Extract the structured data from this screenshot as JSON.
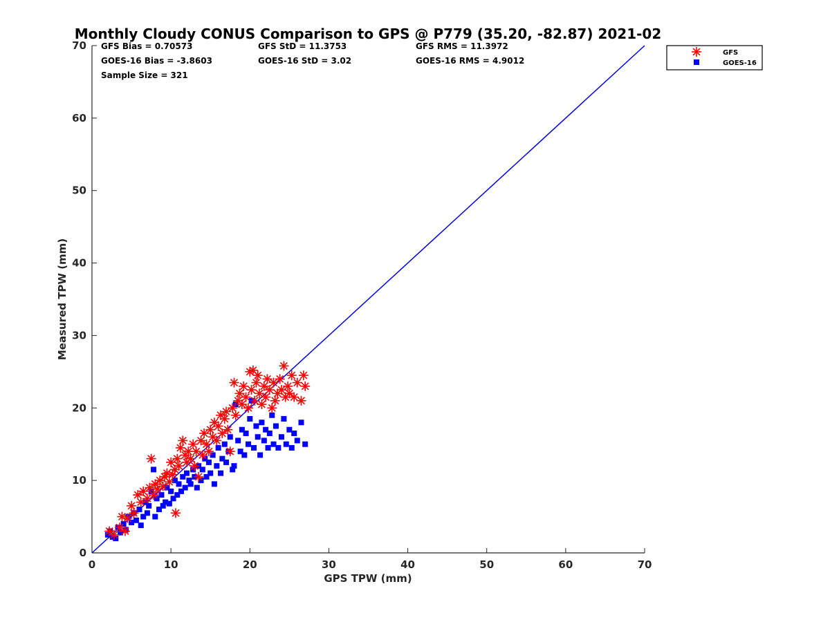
{
  "chart_data": {
    "type": "scatter",
    "title": "Monthly Cloudy CONUS Comparison to GPS @ P779 (35.20, -82.87) 2021-02",
    "xlabel": "GPS TPW (mm)",
    "ylabel": "Measured TPW (mm)",
    "xlim": [
      0,
      70
    ],
    "ylim": [
      0,
      70
    ],
    "xticks": [
      "0",
      "10",
      "20",
      "30",
      "40",
      "50",
      "60",
      "70"
    ],
    "yticks": [
      "0",
      "10",
      "20",
      "30",
      "40",
      "50",
      "60",
      "70"
    ],
    "grid": false,
    "legend_position": "top-right",
    "stats": {
      "gfs_bias": "GFS Bias = 0.70573",
      "gfs_std": "GFS StD = 11.3753",
      "gfs_rms": "GFS RMS = 11.3972",
      "goes_bias": "GOES-16 Bias = -3.8603",
      "goes_std": "GOES-16 StD = 3.02",
      "goes_rms": "GOES-16 RMS = 4.9012",
      "sample_size": "Sample Size = 321"
    },
    "reference_line": {
      "from": [
        0,
        0
      ],
      "to": [
        70,
        70
      ],
      "color": "#0000ff"
    },
    "series": [
      {
        "name": "GFS",
        "marker": "asterisk",
        "color": "#ff0000",
        "points": [
          [
            2.2,
            3.0
          ],
          [
            2.8,
            2.5
          ],
          [
            3.5,
            3.5
          ],
          [
            3.8,
            5.0
          ],
          [
            4.2,
            3.0
          ],
          [
            4.5,
            4.8
          ],
          [
            5.0,
            6.5
          ],
          [
            5.3,
            5.5
          ],
          [
            5.8,
            8.0
          ],
          [
            6.2,
            7.0
          ],
          [
            6.5,
            8.5
          ],
          [
            7.0,
            7.5
          ],
          [
            7.3,
            9.0
          ],
          [
            7.5,
            13.0
          ],
          [
            7.8,
            8.0
          ],
          [
            8.0,
            9.5
          ],
          [
            8.3,
            8.8
          ],
          [
            8.6,
            10.0
          ],
          [
            9.0,
            9.2
          ],
          [
            9.2,
            10.5
          ],
          [
            9.5,
            11.0
          ],
          [
            9.8,
            9.8
          ],
          [
            10.0,
            12.5
          ],
          [
            10.2,
            10.8
          ],
          [
            10.5,
            11.5
          ],
          [
            10.6,
            5.5
          ],
          [
            10.8,
            13.0
          ],
          [
            11.0,
            12.0
          ],
          [
            11.2,
            14.5
          ],
          [
            11.5,
            15.5
          ],
          [
            11.8,
            13.5
          ],
          [
            12.0,
            12.5
          ],
          [
            12.2,
            14.0
          ],
          [
            12.5,
            13.0
          ],
          [
            12.8,
            15.0
          ],
          [
            13.0,
            12.0
          ],
          [
            13.2,
            14.0
          ],
          [
            13.5,
            10.5
          ],
          [
            13.8,
            15.5
          ],
          [
            14.0,
            13.5
          ],
          [
            14.2,
            16.5
          ],
          [
            14.5,
            15.0
          ],
          [
            14.8,
            14.0
          ],
          [
            15.0,
            17.0
          ],
          [
            15.3,
            16.0
          ],
          [
            15.5,
            18.0
          ],
          [
            15.8,
            15.5
          ],
          [
            16.0,
            17.5
          ],
          [
            16.3,
            19.0
          ],
          [
            16.5,
            16.5
          ],
          [
            16.8,
            18.5
          ],
          [
            17.0,
            19.5
          ],
          [
            17.2,
            17.0
          ],
          [
            17.5,
            14.0
          ],
          [
            17.8,
            20.0
          ],
          [
            18.0,
            23.5
          ],
          [
            18.2,
            19.0
          ],
          [
            18.5,
            21.0
          ],
          [
            18.7,
            22.0
          ],
          [
            19.0,
            20.5
          ],
          [
            19.2,
            23.0
          ],
          [
            19.5,
            21.5
          ],
          [
            19.8,
            20.0
          ],
          [
            20.0,
            25.0
          ],
          [
            20.2,
            22.5
          ],
          [
            20.4,
            25.2
          ],
          [
            20.6,
            21.0
          ],
          [
            20.8,
            23.5
          ],
          [
            21.0,
            24.5
          ],
          [
            21.2,
            22.0
          ],
          [
            21.5,
            20.5
          ],
          [
            21.8,
            23.0
          ],
          [
            22.0,
            21.5
          ],
          [
            22.2,
            24.0
          ],
          [
            22.5,
            22.5
          ],
          [
            22.8,
            20.0
          ],
          [
            23.0,
            23.5
          ],
          [
            23.2,
            21.0
          ],
          [
            23.5,
            22.0
          ],
          [
            23.8,
            24.0
          ],
          [
            24.0,
            22.5
          ],
          [
            24.3,
            25.8
          ],
          [
            24.5,
            21.5
          ],
          [
            24.8,
            23.0
          ],
          [
            25.0,
            22.0
          ],
          [
            25.3,
            24.5
          ],
          [
            25.6,
            21.5
          ],
          [
            26.0,
            23.5
          ],
          [
            26.5,
            21.0
          ],
          [
            26.8,
            24.5
          ],
          [
            27.0,
            23.0
          ]
        ]
      },
      {
        "name": "GOES-16",
        "marker": "square",
        "color": "#0000ff",
        "points": [
          [
            2.0,
            2.5
          ],
          [
            2.3,
            3.0
          ],
          [
            2.6,
            2.2
          ],
          [
            3.0,
            2.0
          ],
          [
            3.3,
            3.5
          ],
          [
            3.6,
            2.8
          ],
          [
            4.0,
            4.0
          ],
          [
            4.3,
            3.2
          ],
          [
            4.6,
            5.0
          ],
          [
            5.0,
            4.2
          ],
          [
            5.3,
            5.5
          ],
          [
            5.6,
            4.5
          ],
          [
            6.0,
            6.0
          ],
          [
            6.2,
            3.8
          ],
          [
            6.5,
            5.0
          ],
          [
            6.8,
            7.0
          ],
          [
            7.0,
            5.5
          ],
          [
            7.2,
            6.5
          ],
          [
            7.5,
            8.5
          ],
          [
            7.8,
            11.5
          ],
          [
            8.0,
            5.0
          ],
          [
            8.2,
            7.5
          ],
          [
            8.5,
            6.0
          ],
          [
            8.8,
            8.0
          ],
          [
            9.0,
            6.5
          ],
          [
            9.3,
            7.0
          ],
          [
            9.5,
            9.0
          ],
          [
            9.8,
            6.8
          ],
          [
            10.0,
            8.5
          ],
          [
            10.3,
            7.5
          ],
          [
            10.5,
            10.0
          ],
          [
            10.8,
            8.0
          ],
          [
            11.0,
            9.5
          ],
          [
            11.3,
            8.5
          ],
          [
            11.5,
            10.5
          ],
          [
            11.8,
            9.0
          ],
          [
            12.0,
            11.0
          ],
          [
            12.3,
            10.0
          ],
          [
            12.5,
            9.5
          ],
          [
            12.8,
            11.5
          ],
          [
            13.0,
            10.5
          ],
          [
            13.3,
            9.0
          ],
          [
            13.5,
            12.0
          ],
          [
            13.8,
            10.0
          ],
          [
            14.0,
            11.5
          ],
          [
            14.3,
            13.0
          ],
          [
            14.5,
            10.5
          ],
          [
            14.8,
            12.5
          ],
          [
            15.0,
            11.0
          ],
          [
            15.3,
            13.5
          ],
          [
            15.5,
            9.5
          ],
          [
            15.8,
            12.0
          ],
          [
            16.0,
            14.5
          ],
          [
            16.3,
            11.0
          ],
          [
            16.5,
            13.0
          ],
          [
            16.8,
            15.0
          ],
          [
            17.0,
            12.5
          ],
          [
            17.3,
            14.0
          ],
          [
            17.5,
            16.0
          ],
          [
            17.8,
            11.5
          ],
          [
            18.0,
            12.0
          ],
          [
            18.2,
            20.5
          ],
          [
            18.5,
            15.5
          ],
          [
            18.8,
            14.0
          ],
          [
            19.0,
            17.0
          ],
          [
            19.3,
            13.5
          ],
          [
            19.5,
            16.5
          ],
          [
            19.8,
            15.0
          ],
          [
            20.0,
            18.5
          ],
          [
            20.2,
            21.0
          ],
          [
            20.5,
            14.5
          ],
          [
            20.8,
            17.5
          ],
          [
            21.0,
            16.0
          ],
          [
            21.3,
            13.5
          ],
          [
            21.5,
            18.0
          ],
          [
            21.8,
            15.5
          ],
          [
            22.0,
            17.0
          ],
          [
            22.3,
            14.5
          ],
          [
            22.5,
            16.5
          ],
          [
            22.8,
            19.0
          ],
          [
            23.0,
            15.0
          ],
          [
            23.3,
            17.5
          ],
          [
            23.6,
            14.5
          ],
          [
            24.0,
            16.0
          ],
          [
            24.3,
            18.5
          ],
          [
            24.6,
            15.0
          ],
          [
            25.0,
            17.0
          ],
          [
            25.3,
            14.5
          ],
          [
            25.6,
            16.5
          ],
          [
            26.0,
            15.5
          ],
          [
            26.5,
            18.0
          ],
          [
            27.0,
            15.0
          ]
        ]
      }
    ]
  }
}
